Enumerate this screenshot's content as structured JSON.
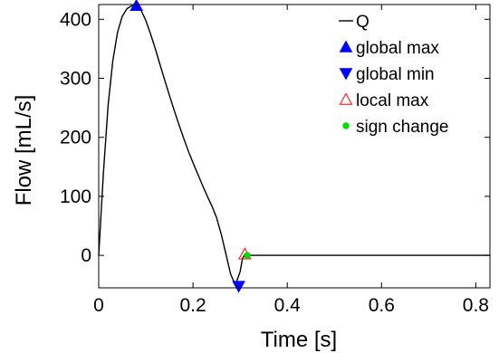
{
  "chart_data": {
    "type": "line",
    "xlabel": "Time [s]",
    "ylabel": "Flow [mL/s]",
    "xlim": [
      0,
      0.83
    ],
    "ylim": [
      -55,
      425
    ],
    "xticks": [
      0,
      0.2,
      0.4,
      0.6,
      0.8
    ],
    "xtick_labels": [
      "0",
      "0.2",
      "0.4",
      "0.6",
      "0.8"
    ],
    "yticks": [
      0,
      100,
      200,
      300,
      400
    ],
    "ytick_labels": [
      "0",
      "100",
      "200",
      "300",
      "400"
    ],
    "grid": false,
    "legend_position": "top-right",
    "series": [
      {
        "name": "Q",
        "color": "#000000",
        "x": [
          0,
          0.01,
          0.02,
          0.03,
          0.04,
          0.05,
          0.06,
          0.07,
          0.08,
          0.09,
          0.1,
          0.11,
          0.12,
          0.13,
          0.14,
          0.15,
          0.16,
          0.17,
          0.18,
          0.19,
          0.2,
          0.21,
          0.22,
          0.23,
          0.24,
          0.25,
          0.26,
          0.27,
          0.28,
          0.29,
          0.3,
          0.305,
          0.31,
          0.315,
          0.32,
          0.4,
          0.5,
          0.6,
          0.7,
          0.8,
          0.83
        ],
        "y": [
          0,
          140,
          255,
          330,
          378,
          405,
          418,
          423,
          423,
          415,
          398,
          375,
          350,
          323,
          297,
          271,
          246,
          222,
          199,
          177,
          157,
          138,
          119,
          101,
          84,
          64,
          36,
          2,
          -32,
          -50,
          -28,
          -6,
          2,
          1,
          0,
          0,
          0,
          0,
          0,
          0,
          0
        ]
      }
    ],
    "markers": [
      {
        "name": "global max",
        "symbol": "triangle-up",
        "color": "#0000ff",
        "filled": true,
        "points": [
          [
            0.08,
            423
          ]
        ]
      },
      {
        "name": "global min",
        "symbol": "triangle-down",
        "color": "#0000ff",
        "filled": true,
        "points": [
          [
            0.297,
            -52
          ]
        ]
      },
      {
        "name": "local max",
        "symbol": "triangle-up",
        "color": "#ff0000",
        "filled": false,
        "points": [
          [
            0.31,
            2
          ]
        ]
      },
      {
        "name": "sign change",
        "symbol": "circle",
        "color": "#00dd00",
        "filled": true,
        "points": [
          [
            0.315,
            0
          ]
        ]
      }
    ]
  }
}
